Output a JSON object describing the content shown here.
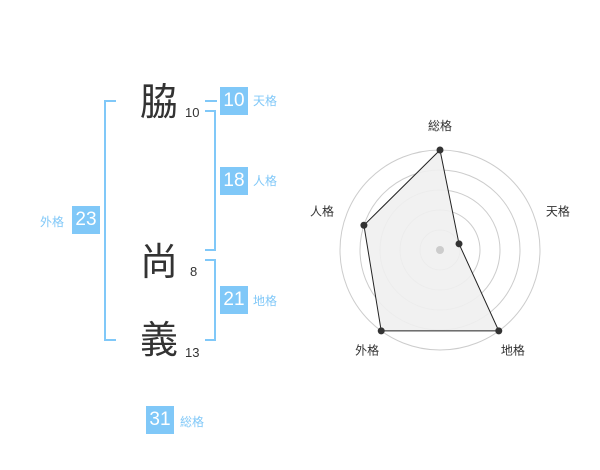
{
  "name": {
    "chars": [
      {
        "char": "脇",
        "strokes": "10"
      },
      {
        "char": "尚",
        "strokes": "8"
      },
      {
        "char": "義",
        "strokes": "13"
      }
    ]
  },
  "fortunes": {
    "tenkaku": {
      "label": "天格",
      "value": "10"
    },
    "jinkaku": {
      "label": "人格",
      "value": "18"
    },
    "gaikaku": {
      "label": "外格",
      "value": "23"
    },
    "chikaku": {
      "label": "地格",
      "value": "21"
    },
    "soukaku": {
      "label": "総格",
      "value": "31"
    }
  },
  "colors": {
    "accent": "#80c8f8",
    "text": "#333333",
    "grid": "#cccccc",
    "fill": "#f0f0f0"
  },
  "chart_data": {
    "type": "radar",
    "axes": [
      "総格",
      "天格",
      "地格",
      "外格",
      "人格"
    ],
    "values": [
      5,
      1,
      5,
      5,
      4
    ],
    "range": [
      0,
      5
    ],
    "rings": 5
  }
}
